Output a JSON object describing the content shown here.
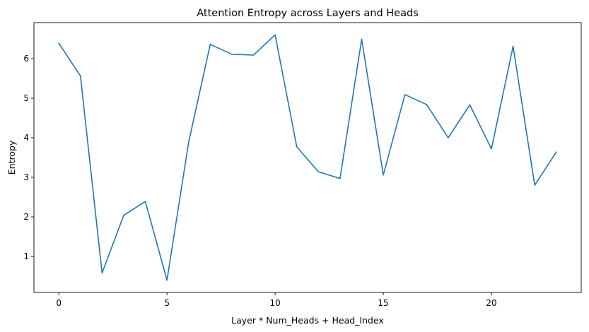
{
  "chart_data": {
    "type": "line",
    "title": "Attention Entropy across Layers and Heads",
    "xlabel": "Layer * Num_Heads + Head_Index",
    "ylabel": "Entropy",
    "xlim": [
      -1.15,
      24.15
    ],
    "ylim": [
      0.09,
      6.91
    ],
    "xticks": [
      0,
      5,
      10,
      15,
      20
    ],
    "yticks": [
      1,
      2,
      3,
      4,
      5,
      6
    ],
    "grid": false,
    "legend": "none",
    "series": [
      {
        "color": "#1f77b4",
        "x": [
          0,
          1,
          2,
          3,
          4,
          5,
          6,
          7,
          8,
          9,
          10,
          11,
          12,
          13,
          14,
          15,
          16,
          17,
          18,
          19,
          20,
          21,
          22,
          23
        ],
        "y": [
          6.39,
          5.56,
          0.58,
          2.04,
          2.39,
          0.4,
          3.88,
          6.36,
          6.11,
          6.09,
          6.6,
          3.77,
          3.14,
          2.97,
          6.49,
          3.06,
          5.09,
          4.84,
          4.0,
          4.83,
          3.72,
          6.31,
          2.8,
          3.64
        ]
      }
    ]
  }
}
